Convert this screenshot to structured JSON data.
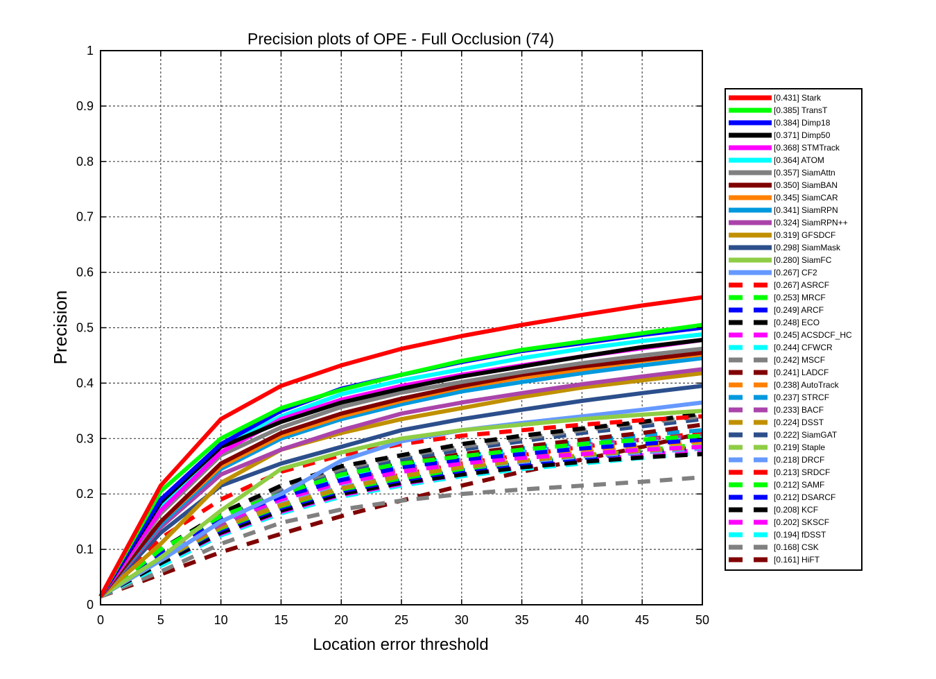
{
  "chart_data": {
    "type": "line",
    "title": "Precision plots of OPE - Full Occlusion (74)",
    "xlabel": "Location error threshold",
    "ylabel": "Precision",
    "xlim": [
      0,
      50
    ],
    "ylim": [
      0,
      1
    ],
    "x_ticks": [
      0,
      5,
      10,
      15,
      20,
      25,
      30,
      35,
      40,
      45,
      50
    ],
    "y_ticks": [
      0,
      0.1,
      0.2,
      0.3,
      0.4,
      0.5,
      0.6,
      0.7,
      0.8,
      0.9,
      1
    ],
    "x_tick_labels": [
      "0",
      "5",
      "10",
      "15",
      "20",
      "25",
      "30",
      "35",
      "40",
      "45",
      "50"
    ],
    "y_tick_labels": [
      "0",
      "0.1",
      "0.2",
      "0.3",
      "0.4",
      "0.5",
      "0.6",
      "0.7",
      "0.8",
      "0.9",
      "1"
    ],
    "grid": true,
    "legend_position": "right",
    "x": [
      0,
      5,
      10,
      15,
      20,
      25,
      30,
      35,
      40,
      45,
      50
    ],
    "series": [
      {
        "name": "[0.431] Stark",
        "color": "#ff0000",
        "dash": false,
        "values": [
          0.015,
          0.215,
          0.335,
          0.395,
          0.432,
          0.462,
          0.485,
          0.505,
          0.523,
          0.54,
          0.555
        ]
      },
      {
        "name": "[0.385] TransT",
        "color": "#00ff00",
        "dash": false,
        "values": [
          0.015,
          0.205,
          0.3,
          0.355,
          0.388,
          0.415,
          0.44,
          0.46,
          0.475,
          0.49,
          0.505
        ]
      },
      {
        "name": "[0.384] Dimp18",
        "color": "#0000ff",
        "dash": false,
        "values": [
          0.015,
          0.19,
          0.29,
          0.35,
          0.39,
          0.415,
          0.438,
          0.458,
          0.472,
          0.487,
          0.5
        ]
      },
      {
        "name": "[0.371] Dimp50",
        "color": "#000000",
        "dash": false,
        "values": [
          0.015,
          0.185,
          0.285,
          0.33,
          0.365,
          0.39,
          0.412,
          0.43,
          0.448,
          0.465,
          0.478
        ]
      },
      {
        "name": "[0.368] STMTrack",
        "color": "#ff00ff",
        "dash": false,
        "values": [
          0.015,
          0.17,
          0.275,
          0.335,
          0.37,
          0.395,
          0.415,
          0.432,
          0.448,
          0.463,
          0.478
        ]
      },
      {
        "name": "[0.364] ATOM",
        "color": "#00ffff",
        "dash": false,
        "values": [
          0.015,
          0.175,
          0.285,
          0.34,
          0.38,
          0.405,
          0.425,
          0.445,
          0.462,
          0.476,
          0.488
        ]
      },
      {
        "name": "[0.357] SiamAttn",
        "color": "#808080",
        "dash": false,
        "values": [
          0.015,
          0.165,
          0.27,
          0.32,
          0.357,
          0.383,
          0.402,
          0.42,
          0.436,
          0.45,
          0.462
        ]
      },
      {
        "name": "[0.350] SiamBAN",
        "color": "#800000",
        "dash": false,
        "values": [
          0.015,
          0.15,
          0.255,
          0.31,
          0.345,
          0.372,
          0.395,
          0.415,
          0.43,
          0.442,
          0.455
        ]
      },
      {
        "name": "[0.345] SiamCAR",
        "color": "#ff8000",
        "dash": false,
        "values": [
          0.015,
          0.15,
          0.25,
          0.305,
          0.34,
          0.368,
          0.392,
          0.41,
          0.425,
          0.44,
          0.452
        ]
      },
      {
        "name": "[0.341] SiamRPN",
        "color": "#0099dd",
        "dash": false,
        "values": [
          0.015,
          0.145,
          0.245,
          0.3,
          0.335,
          0.362,
          0.385,
          0.402,
          0.418,
          0.432,
          0.445
        ]
      },
      {
        "name": "[0.324] SiamRPN++",
        "color": "#aa44aa",
        "dash": false,
        "values": [
          0.015,
          0.14,
          0.235,
          0.28,
          0.315,
          0.345,
          0.365,
          0.382,
          0.398,
          0.412,
          0.425
        ]
      },
      {
        "name": "[0.319] GFSDCF",
        "color": "#c09000",
        "dash": false,
        "values": [
          0.015,
          0.11,
          0.22,
          0.28,
          0.31,
          0.335,
          0.355,
          0.375,
          0.392,
          0.405,
          0.418
        ]
      },
      {
        "name": "[0.298] SiamMask",
        "color": "#2c4f8c",
        "dash": false,
        "values": [
          0.015,
          0.13,
          0.215,
          0.255,
          0.285,
          0.315,
          0.335,
          0.352,
          0.368,
          0.382,
          0.395
        ]
      },
      {
        "name": "[0.280] SiamFC",
        "color": "#8fcd45",
        "dash": false,
        "values": [
          0.015,
          0.085,
          0.17,
          0.245,
          0.275,
          0.3,
          0.315,
          0.325,
          0.335,
          0.343,
          0.35
        ]
      },
      {
        "name": "[0.267] CF2",
        "color": "#6699ff",
        "dash": false,
        "values": [
          0.015,
          0.08,
          0.15,
          0.2,
          0.26,
          0.295,
          0.315,
          0.328,
          0.34,
          0.352,
          0.365
        ]
      },
      {
        "name": "[0.267] ASRCF",
        "color": "#ff0000",
        "dash": true,
        "values": [
          0.015,
          0.12,
          0.19,
          0.24,
          0.27,
          0.29,
          0.305,
          0.315,
          0.325,
          0.333,
          0.34
        ]
      },
      {
        "name": "[0.253] MRCF",
        "color": "#00ff00",
        "dash": true,
        "values": [
          0.015,
          0.1,
          0.16,
          0.2,
          0.235,
          0.255,
          0.268,
          0.28,
          0.29,
          0.298,
          0.305
        ]
      },
      {
        "name": "[0.249] ARCF",
        "color": "#0000ff",
        "dash": true,
        "values": [
          0.015,
          0.095,
          0.155,
          0.195,
          0.225,
          0.248,
          0.262,
          0.272,
          0.282,
          0.29,
          0.298
        ]
      },
      {
        "name": "[0.248] ECO",
        "color": "#000000",
        "dash": true,
        "values": [
          0.015,
          0.1,
          0.165,
          0.215,
          0.25,
          0.27,
          0.29,
          0.305,
          0.318,
          0.33,
          0.345
        ]
      },
      {
        "name": "[0.245] ACSDCF_HC",
        "color": "#ff00ff",
        "dash": true,
        "values": [
          0.015,
          0.095,
          0.15,
          0.19,
          0.22,
          0.24,
          0.255,
          0.265,
          0.272,
          0.28,
          0.285
        ]
      },
      {
        "name": "[0.244] CFWCR",
        "color": "#00ffff",
        "dash": true,
        "values": [
          0.015,
          0.09,
          0.15,
          0.195,
          0.228,
          0.25,
          0.265,
          0.275,
          0.285,
          0.292,
          0.3
        ]
      },
      {
        "name": "[0.242] MSCF",
        "color": "#808080",
        "dash": true,
        "values": [
          0.015,
          0.095,
          0.16,
          0.21,
          0.245,
          0.268,
          0.285,
          0.3,
          0.315,
          0.328,
          0.34
        ]
      },
      {
        "name": "[0.241] LADCF",
        "color": "#800000",
        "dash": true,
        "values": [
          0.015,
          0.095,
          0.155,
          0.2,
          0.232,
          0.255,
          0.272,
          0.285,
          0.298,
          0.31,
          0.325
        ]
      },
      {
        "name": "[0.238] AutoTrack",
        "color": "#ff8000",
        "dash": true,
        "values": [
          0.015,
          0.09,
          0.15,
          0.192,
          0.222,
          0.242,
          0.258,
          0.27,
          0.28,
          0.288,
          0.295
        ]
      },
      {
        "name": "[0.237] STRCF",
        "color": "#0099dd",
        "dash": true,
        "values": [
          0.015,
          0.09,
          0.15,
          0.195,
          0.228,
          0.25,
          0.268,
          0.282,
          0.295,
          0.306,
          0.315
        ]
      },
      {
        "name": "[0.233] BACF",
        "color": "#aa44aa",
        "dash": true,
        "values": [
          0.015,
          0.085,
          0.145,
          0.19,
          0.222,
          0.245,
          0.262,
          0.275,
          0.288,
          0.298,
          0.305
        ]
      },
      {
        "name": "[0.224] DSST",
        "color": "#c09000",
        "dash": true,
        "values": [
          0.015,
          0.08,
          0.14,
          0.18,
          0.21,
          0.232,
          0.248,
          0.26,
          0.27,
          0.278,
          0.285
        ]
      },
      {
        "name": "[0.222] SiamGAT",
        "color": "#2c4f8c",
        "dash": true,
        "values": [
          0.015,
          0.09,
          0.155,
          0.205,
          0.24,
          0.262,
          0.28,
          0.295,
          0.31,
          0.322,
          0.335
        ]
      },
      {
        "name": "[0.219] Staple",
        "color": "#8fcd45",
        "dash": true,
        "values": [
          0.015,
          0.085,
          0.145,
          0.19,
          0.22,
          0.24,
          0.255,
          0.265,
          0.275,
          0.282,
          0.29
        ]
      },
      {
        "name": "[0.218] DRCF",
        "color": "#6699ff",
        "dash": true,
        "values": [
          0.015,
          0.08,
          0.14,
          0.182,
          0.212,
          0.232,
          0.248,
          0.258,
          0.268,
          0.275,
          0.282
        ]
      },
      {
        "name": "[0.213] SRDCF",
        "color": "#ff0000",
        "dash": true,
        "values": [
          0.015,
          0.085,
          0.14,
          0.18,
          0.21,
          0.235,
          0.255,
          0.27,
          0.285,
          0.298,
          0.31
        ]
      },
      {
        "name": "[0.212] SAMF",
        "color": "#00ff00",
        "dash": true,
        "values": [
          0.015,
          0.08,
          0.138,
          0.178,
          0.208,
          0.228,
          0.245,
          0.258,
          0.268,
          0.278,
          0.29
        ]
      },
      {
        "name": "[0.212] DSARCF",
        "color": "#0000ff",
        "dash": true,
        "values": [
          0.015,
          0.08,
          0.135,
          0.175,
          0.205,
          0.225,
          0.242,
          0.255,
          0.265,
          0.275,
          0.285
        ]
      },
      {
        "name": "[0.208] KCF",
        "color": "#000000",
        "dash": true,
        "values": [
          0.015,
          0.075,
          0.13,
          0.17,
          0.2,
          0.22,
          0.235,
          0.248,
          0.258,
          0.266,
          0.272
        ]
      },
      {
        "name": "[0.202] SKSCF",
        "color": "#ff00ff",
        "dash": true,
        "values": [
          0.015,
          0.075,
          0.128,
          0.168,
          0.198,
          0.218,
          0.235,
          0.248,
          0.26,
          0.27,
          0.28
        ]
      },
      {
        "name": "[0.194] fDSST",
        "color": "#00ffff",
        "dash": true,
        "values": [
          0.015,
          0.07,
          0.125,
          0.165,
          0.195,
          0.215,
          0.232,
          0.245,
          0.255,
          0.265,
          0.275
        ]
      },
      {
        "name": "[0.168] CSK",
        "color": "#808080",
        "dash": true,
        "values": [
          0.015,
          0.06,
          0.11,
          0.148,
          0.172,
          0.188,
          0.2,
          0.208,
          0.215,
          0.222,
          0.23
        ]
      },
      {
        "name": "[0.161] HiFT",
        "color": "#800000",
        "dash": true,
        "values": [
          0.015,
          0.055,
          0.095,
          0.128,
          0.16,
          0.188,
          0.215,
          0.24,
          0.262,
          0.285,
          0.31
        ]
      }
    ]
  }
}
